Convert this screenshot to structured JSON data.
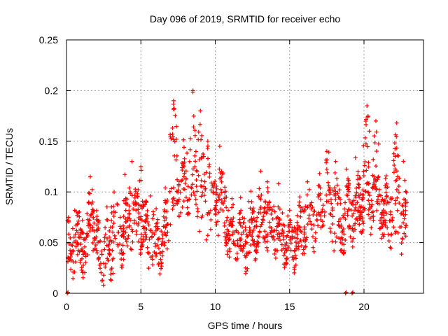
{
  "chart_data": {
    "type": "scatter",
    "title": "Day 096 of 2019, SRMTID for receiver echo",
    "xlabel": "GPS time / hours",
    "ylabel": "SRMTID / TECUs",
    "xlim": [
      0,
      24
    ],
    "ylim": [
      0,
      0.25
    ],
    "xticks": [
      0,
      5,
      10,
      15,
      20
    ],
    "xtick_labels": [
      "0",
      "5",
      "10",
      "15",
      "20"
    ],
    "yticks": [
      0,
      0.05,
      0.1,
      0.15,
      0.2,
      0.25
    ],
    "ytick_labels": [
      "0",
      "0.05",
      "0.1",
      "0.15",
      "0.2",
      "0.25"
    ],
    "grid": true,
    "marker": "+",
    "series_color": "#ff0000",
    "series": [
      {
        "name": "SRMTID",
        "trend": [
          [
            0.0,
            0.04
          ],
          [
            0.5,
            0.045
          ],
          [
            1.0,
            0.05
          ],
          [
            1.5,
            0.045
          ],
          [
            1.75,
            0.08
          ],
          [
            2.0,
            0.05
          ],
          [
            2.5,
            0.035
          ],
          [
            3.0,
            0.045
          ],
          [
            3.5,
            0.06
          ],
          [
            4.0,
            0.06
          ],
          [
            4.5,
            0.07
          ],
          [
            5.0,
            0.07
          ],
          [
            5.5,
            0.055
          ],
          [
            6.0,
            0.05
          ],
          [
            6.5,
            0.05
          ],
          [
            7.0,
            0.085
          ],
          [
            7.5,
            0.11
          ],
          [
            8.0,
            0.1
          ],
          [
            8.5,
            0.11
          ],
          [
            9.0,
            0.09
          ],
          [
            9.5,
            0.075
          ],
          [
            10.0,
            0.085
          ],
          [
            10.5,
            0.09
          ],
          [
            11.0,
            0.06
          ],
          [
            11.5,
            0.055
          ],
          [
            12.0,
            0.05
          ],
          [
            12.5,
            0.06
          ],
          [
            13.0,
            0.065
          ],
          [
            13.5,
            0.07
          ],
          [
            14.0,
            0.07
          ],
          [
            14.5,
            0.055
          ],
          [
            15.0,
            0.05
          ],
          [
            15.5,
            0.055
          ],
          [
            16.0,
            0.065
          ],
          [
            16.5,
            0.07
          ],
          [
            17.0,
            0.075
          ],
          [
            17.5,
            0.085
          ],
          [
            18.0,
            0.07
          ],
          [
            18.5,
            0.065
          ],
          [
            19.0,
            0.08
          ],
          [
            19.5,
            0.08
          ],
          [
            20.0,
            0.095
          ],
          [
            20.5,
            0.09
          ],
          [
            21.0,
            0.09
          ],
          [
            21.5,
            0.075
          ],
          [
            22.0,
            0.07
          ],
          [
            22.5,
            0.07
          ],
          [
            23.0,
            0.065
          ]
        ],
        "peaks": [
          [
            7.2,
            0.19
          ],
          [
            8.5,
            0.2
          ],
          [
            9.0,
            0.18
          ],
          [
            9.5,
            0.15
          ],
          [
            10.3,
            0.145
          ],
          [
            17.5,
            0.14
          ],
          [
            20.2,
            0.185
          ],
          [
            20.8,
            0.17
          ],
          [
            22.2,
            0.168
          ],
          [
            22.1,
            0.135
          ],
          [
            1.6,
            0.115
          ],
          [
            4.4,
            0.13
          ],
          [
            5.0,
            0.125
          ],
          [
            3.2,
            0.1
          ],
          [
            13.5,
            0.11
          ],
          [
            16.2,
            0.11
          ],
          [
            18.1,
            0.13
          ],
          [
            19.6,
            0.12
          ]
        ],
        "zero_points": [
          0.05,
          18.75,
          19.2
        ],
        "n_points": 1450,
        "x_start": 0.05,
        "x_end": 22.9
      }
    ]
  }
}
